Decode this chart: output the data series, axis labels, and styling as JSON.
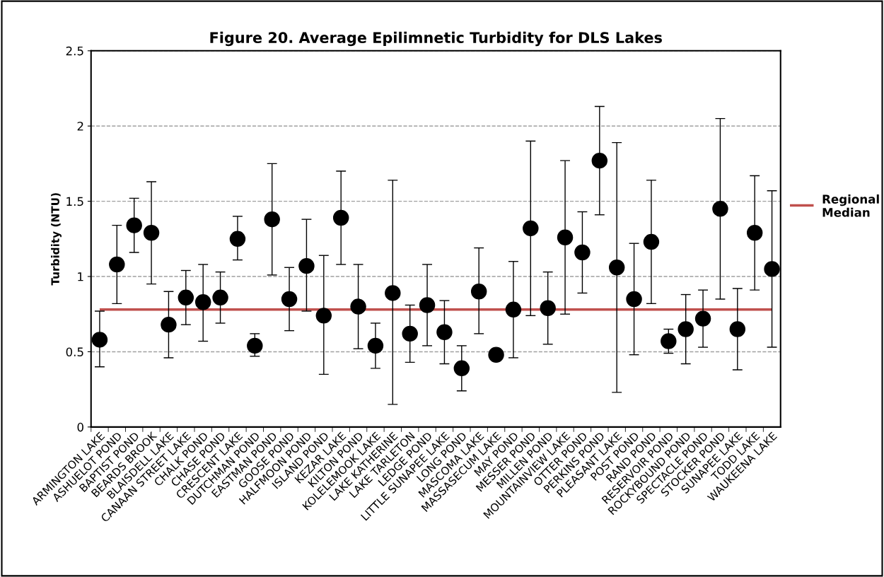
{
  "chart_data": {
    "type": "scatter",
    "title": "Figure 20. Average Epilimnetic Turbidity for DLS Lakes",
    "ylabel": "Turbidity (NTU)",
    "categories": [
      "ARMINGTON LAKE",
      "ASHUELOT POND",
      "BAPTIST POND",
      "BEARDS BROOK",
      "BLAISDELL LAKE",
      "CANAAN STREET LAKE",
      "CHALK POND",
      "CHASE POND",
      "CRESCENT LAKE",
      "DUTCHMAN POND",
      "EASTMAN POND",
      "GOOSE POND",
      "HALFMOON POND",
      "ISLAND POND",
      "KEZAR LAKE",
      "KILTON POND",
      "KOLELEMOOK LAKE",
      "LAKE KATHERINE",
      "LAKE TARLETON",
      "LEDGE POND",
      "LITTLE SUNAPEE LAKE",
      "LONG POND",
      "MASCOMA LAKE",
      "MASSASECUM LAKE",
      "MAY POND",
      "MESSER POND",
      "MILLEN POND",
      "MOUNTAINVIEW LAKE",
      "OTTER POND",
      "PERKINS POND",
      "PLEASANT LAKE",
      "POST POND",
      "RAND POND",
      "RESERVOIR POND",
      "ROCKYBOUND POND",
      "SPECTACLE POND",
      "STOCKER POND",
      "SUNAPEE LAKE",
      "TODD LAKE",
      "WAUKEENA LAKE"
    ],
    "series": [
      {
        "color": "#000000",
        "values": [
          0.58,
          1.08,
          1.34,
          1.29,
          0.68,
          0.86,
          0.83,
          0.86,
          1.25,
          0.54,
          1.38,
          0.85,
          1.07,
          0.74,
          1.39,
          0.8,
          0.54,
          0.89,
          0.62,
          0.81,
          0.63,
          0.39,
          0.9,
          0.48,
          0.78,
          1.32,
          0.79,
          1.26,
          1.16,
          1.77,
          1.06,
          0.85,
          1.23,
          0.57,
          0.65,
          0.72,
          1.45,
          0.65,
          1.29,
          1.05
        ],
        "errors": [
          [
            0.4,
            0.77
          ],
          [
            0.82,
            1.34
          ],
          [
            1.16,
            1.52
          ],
          [
            0.95,
            1.63
          ],
          [
            0.46,
            0.9
          ],
          [
            0.68,
            1.04
          ],
          [
            0.57,
            1.08
          ],
          [
            0.69,
            1.03
          ],
          [
            1.11,
            1.4
          ],
          [
            0.47,
            0.62
          ],
          [
            1.01,
            1.75
          ],
          [
            0.64,
            1.06
          ],
          [
            0.77,
            1.38
          ],
          [
            0.35,
            1.14
          ],
          [
            1.08,
            1.7
          ],
          [
            0.52,
            1.08
          ],
          [
            0.39,
            0.69
          ],
          [
            0.15,
            1.64
          ],
          [
            0.43,
            0.81
          ],
          [
            0.54,
            1.08
          ],
          [
            0.42,
            0.84
          ],
          [
            0.24,
            0.54
          ],
          [
            0.62,
            1.19
          ],
          null,
          [
            0.46,
            1.1
          ],
          [
            0.74,
            1.9
          ],
          [
            0.55,
            1.03
          ],
          [
            0.75,
            1.77
          ],
          [
            0.89,
            1.43
          ],
          [
            1.41,
            2.13
          ],
          [
            0.23,
            1.89
          ],
          [
            0.48,
            1.22
          ],
          [
            0.82,
            1.64
          ],
          [
            0.49,
            0.65
          ],
          [
            0.42,
            0.88
          ],
          [
            0.53,
            0.91
          ],
          [
            0.85,
            2.05
          ],
          [
            0.38,
            0.92
          ],
          [
            0.91,
            1.67
          ],
          [
            0.53,
            1.57
          ]
        ]
      }
    ],
    "ref_lines": [
      {
        "axis": "y",
        "value": 0.78,
        "label": "Regional Median",
        "color": "#c0504d",
        "line_style": "solid"
      }
    ],
    "ylim": [
      0,
      2.5
    ],
    "yticks": [
      0,
      0.5,
      1,
      1.5,
      2,
      2.5
    ],
    "grid": "y",
    "legend": "right",
    "marker": "circle"
  }
}
